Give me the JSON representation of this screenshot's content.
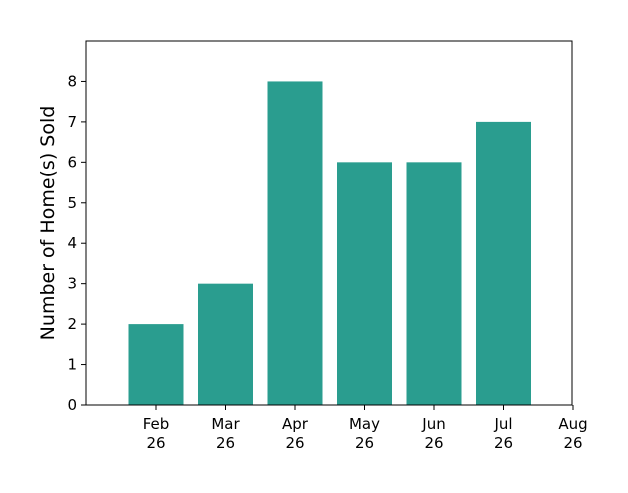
{
  "chart_data": {
    "type": "bar",
    "title": "",
    "xlabel": "",
    "ylabel": "Number of Home(s) Sold",
    "bar_color": "#2a9d8f",
    "ylim": [
      0,
      9
    ],
    "yticks": [
      0,
      1,
      2,
      3,
      4,
      5,
      6,
      7,
      8
    ],
    "xtick_labels": [
      [
        "Feb",
        "26"
      ],
      [
        "Mar",
        "26"
      ],
      [
        "Apr",
        "26"
      ],
      [
        "May",
        "26"
      ],
      [
        "Jun",
        "26"
      ],
      [
        "Jul",
        "26"
      ],
      [
        "Aug",
        "26"
      ]
    ],
    "categories": [
      "Feb 26",
      "Mar 26",
      "Apr 26",
      "May 26",
      "Jun 26",
      "Jul 26"
    ],
    "values": [
      2,
      3,
      8,
      6,
      6,
      7
    ],
    "grid": false,
    "legend": "none"
  }
}
